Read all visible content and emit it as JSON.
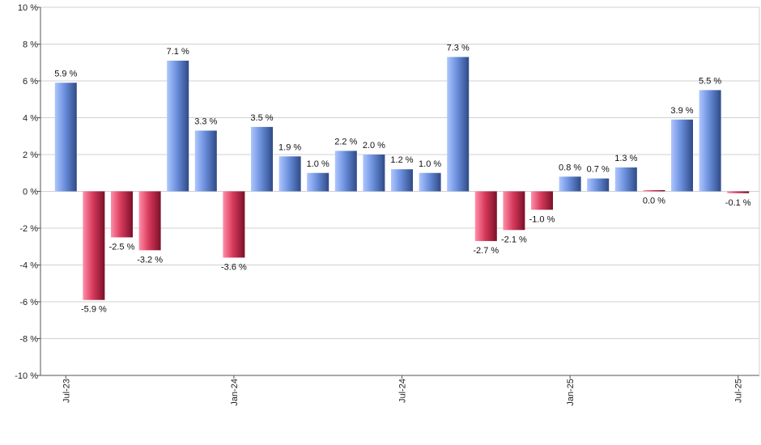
{
  "chart_data": {
    "type": "bar",
    "x_tick_labels": [
      "Jul-23",
      "Jan-24",
      "Jul-24",
      "Jan-25",
      "Jul-25"
    ],
    "x_tick_positions": [
      0,
      6,
      12,
      18,
      24
    ],
    "values": [
      5.9,
      -5.9,
      -2.5,
      -3.2,
      7.1,
      3.3,
      -3.6,
      3.5,
      1.9,
      1.0,
      2.2,
      2.0,
      1.2,
      1.0,
      7.3,
      -2.7,
      -2.1,
      -1.0,
      0.8,
      0.7,
      1.3,
      0.0,
      3.9,
      5.5,
      -0.1
    ],
    "data_labels": [
      "5.9 %",
      "-5.9 %",
      "-2.5 %",
      "-3.2 %",
      "7.1 %",
      "3.3 %",
      "-3.6 %",
      "3.5 %",
      "1.9 %",
      "1.0 %",
      "2.2 %",
      "2.0 %",
      "1.2 %",
      "1.0 %",
      "7.3 %",
      "-2.7 %",
      "-2.1 %",
      "-1.0 %",
      "0.8 %",
      "0.7 %",
      "1.3 %",
      "0.0 %",
      "3.9 %",
      "5.5 %",
      "-0.1 %"
    ],
    "ylim": [
      -10,
      10
    ],
    "y_ticks": [
      -10,
      -8,
      -6,
      -4,
      -2,
      0,
      2,
      4,
      6,
      8,
      10
    ],
    "y_tick_labels": [
      "-10 %",
      "-8 %",
      "-6 %",
      "-4 %",
      "-2 %",
      "0 %",
      "2 %",
      "4 %",
      "6 %",
      "8 %",
      "10 %"
    ],
    "grid": true,
    "colors": {
      "positive_light": "#aec6ff",
      "positive_mid": "#6a8fdc",
      "positive_dark": "#2f4a86",
      "negative_light": "#ff8fa8",
      "negative_mid": "#d83a5c",
      "negative_dark": "#7a1028",
      "grid": "#d0d0d0",
      "axis": "#555555"
    }
  }
}
